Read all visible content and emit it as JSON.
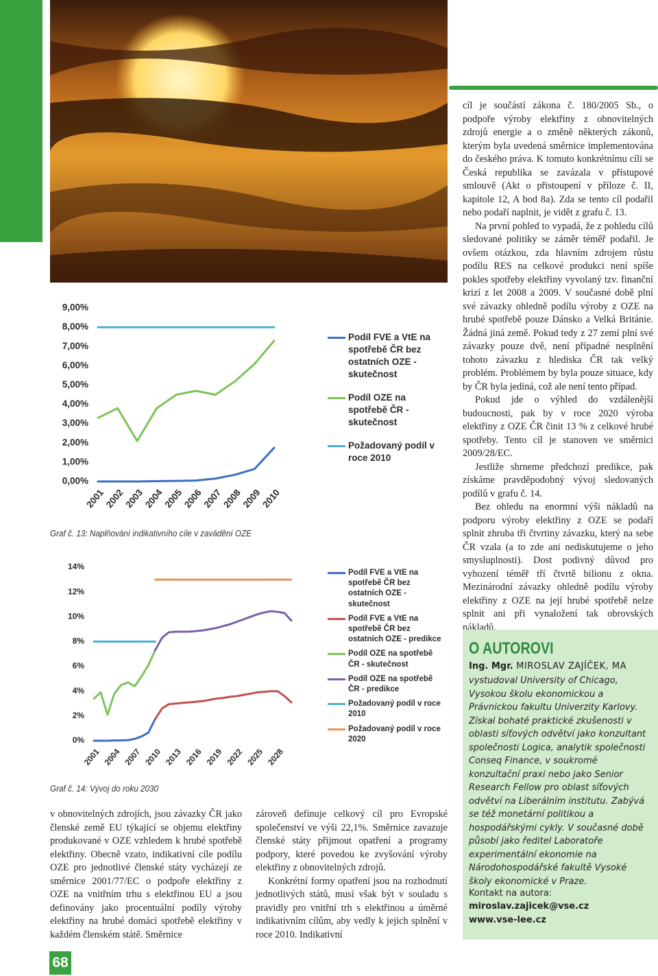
{
  "page_number": "68",
  "chart_data": [
    {
      "type": "line",
      "title": "Graf č. 13: Naplňování indikativního cíle v zavádění OZE",
      "categories": [
        "2001",
        "2002",
        "2003",
        "2004",
        "2005",
        "2006",
        "2007",
        "2008",
        "2009",
        "2010"
      ],
      "ylim": [
        0,
        9
      ],
      "yticks": [
        {
          "value": 0,
          "label": "0,00%"
        },
        {
          "value": 1,
          "label": "1,00%"
        },
        {
          "value": 2,
          "label": "2,00%"
        },
        {
          "value": 3,
          "label": "3,00%"
        },
        {
          "value": 4,
          "label": "4,00%"
        },
        {
          "value": 5,
          "label": "5,00%"
        },
        {
          "value": 6,
          "label": "6,00%"
        },
        {
          "value": 7,
          "label": "7,00%"
        },
        {
          "value": 8,
          "label": "8,00%"
        },
        {
          "value": 9,
          "label": "9,00%"
        }
      ],
      "grid": false,
      "legend": "right",
      "series": [
        {
          "name": "Podíl FVE a VtE na spotřebě ČR bez ostatních OZE - skutečnost",
          "color": "#3b6fc4",
          "values": [
            0,
            0,
            0,
            0.02,
            0.03,
            0.05,
            0.15,
            0.35,
            0.65,
            1.75
          ]
        },
        {
          "name": "Podíl OZE na spotřebě ČR - skutečnost",
          "color": "#7cc35a",
          "values": [
            3.3,
            3.8,
            2.1,
            3.8,
            4.5,
            4.7,
            4.5,
            5.2,
            6.1,
            7.3
          ]
        },
        {
          "name": "Požadovaný podíl v roce 2010",
          "color": "#4aaed6",
          "values": [
            8,
            8,
            8,
            8,
            8,
            8,
            8,
            8,
            8,
            8
          ]
        }
      ]
    },
    {
      "type": "line",
      "title": "Graf č. 14: Vývoj do roku 2030",
      "x": [
        2001,
        2002,
        2003,
        2004,
        2005,
        2006,
        2007,
        2008,
        2009,
        2010,
        2011,
        2012,
        2013,
        2014,
        2015,
        2016,
        2017,
        2018,
        2019,
        2020,
        2021,
        2022,
        2023,
        2024,
        2025,
        2026,
        2027,
        2028,
        2029,
        2030
      ],
      "xlim": [
        2001,
        2030
      ],
      "xticks": [
        2001,
        2004,
        2007,
        2010,
        2013,
        2016,
        2019,
        2022,
        2025,
        2028
      ],
      "ylim": [
        0,
        14
      ],
      "yticks": [
        {
          "value": 0,
          "label": "0%"
        },
        {
          "value": 2,
          "label": "2%"
        },
        {
          "value": 4,
          "label": "4%"
        },
        {
          "value": 6,
          "label": "6%"
        },
        {
          "value": 8,
          "label": "8%"
        },
        {
          "value": 10,
          "label": "10%"
        },
        {
          "value": 12,
          "label": "12%"
        },
        {
          "value": 14,
          "label": "14%"
        }
      ],
      "grid": false,
      "legend": "right",
      "series": [
        {
          "name": "Podíl FVE a VtE na spotřebě ČR bez ostatních OZE - skutečnost",
          "color": "#3b6fc4",
          "values": [
            0,
            0,
            0,
            0.02,
            0.03,
            0.05,
            0.15,
            0.35,
            0.65,
            1.75,
            null,
            null,
            null,
            null,
            null,
            null,
            null,
            null,
            null,
            null,
            null,
            null,
            null,
            null,
            null,
            null,
            null,
            null,
            null,
            null
          ]
        },
        {
          "name": "Podíl FVE a VtE na spotřebě ČR bez ostatních OZE - predikce",
          "color": "#c0504d",
          "values": [
            null,
            null,
            null,
            null,
            null,
            null,
            null,
            null,
            null,
            1.75,
            2.6,
            2.95,
            3.0,
            3.05,
            3.1,
            3.15,
            3.2,
            3.3,
            3.4,
            3.45,
            3.55,
            3.6,
            3.7,
            3.8,
            3.9,
            3.95,
            4.0,
            4.0,
            3.6,
            3.1
          ]
        },
        {
          "name": "Podíl OZE na spotřebě ČR - skutečnost",
          "color": "#7cc35a",
          "values": [
            3.4,
            3.9,
            2.1,
            3.8,
            4.5,
            4.7,
            4.4,
            5.2,
            6.1,
            7.3,
            null,
            null,
            null,
            null,
            null,
            null,
            null,
            null,
            null,
            null,
            null,
            null,
            null,
            null,
            null,
            null,
            null,
            null,
            null,
            null
          ]
        },
        {
          "name": "Podíl OZE na spotřebě ČR - predikce",
          "color": "#7a5fa8",
          "values": [
            null,
            null,
            null,
            null,
            null,
            null,
            null,
            null,
            null,
            7.3,
            8.3,
            8.75,
            8.8,
            8.8,
            8.8,
            8.85,
            8.9,
            9.0,
            9.1,
            9.25,
            9.4,
            9.6,
            9.8,
            10.0,
            10.2,
            10.35,
            10.45,
            10.4,
            10.3,
            9.7
          ]
        },
        {
          "name": "Požadovaný podíl v roce 2010",
          "color": "#4aaed6",
          "values": [
            8,
            8,
            8,
            8,
            8,
            8,
            8,
            8,
            8,
            8,
            null,
            null,
            null,
            null,
            null,
            null,
            null,
            null,
            null,
            null,
            null,
            null,
            null,
            null,
            null,
            null,
            null,
            null,
            null,
            null
          ]
        },
        {
          "name": "Požadovaný podíl v roce 2020",
          "color": "#e8955a",
          "values": [
            null,
            null,
            null,
            null,
            null,
            null,
            null,
            null,
            null,
            13,
            13,
            13,
            13,
            13,
            13,
            13,
            13,
            13,
            13,
            13,
            13,
            13,
            13,
            13,
            13,
            13,
            13,
            13,
            13,
            13
          ]
        }
      ]
    }
  ],
  "article": {
    "left_column": [
      "v obnovitelných zdrojích, jsou závazky ČR jako členské země EU týkající se objemu elektřiny produkované v OZE vzhledem k hrubé spotřebě elektřiny. Obecně vzato, indikativní cíle podílu OZE pro jednotlivé členské státy vycházejí ze směrnice 2001/77/EC o podpoře elektřiny z OZE na vnitřním trhu s elektřinou EU a jsou definovány jako procentuální podíly výroby elektřiny na hrubé domácí spotřebě elektřiny v každém členském státě. Směrnice"
    ],
    "middle_column": [
      "zároveň definuje celkový cíl pro Evropské společenství ve výši 22,1%. Směrnice zavazuje členské státy přijmout opatření a programy podpory, které povedou ke zvyšování výroby elektřiny z obnovitelných zdrojů.",
      "Konkrétní formy opatření jsou na rozhodnutí jednotlivých států, musí však být v souladu s pravidly pro vnitřní trh s elektřinou a úměrné indikativním cílům, aby vedly k jejich splnění v roce 2010. Indikativní"
    ],
    "right_column": [
      "cíl je součástí zákona č. 180/2005 Sb., o podpoře výroby elektřiny z obnovitelných zdrojů energie a o změně některých zákonů, kterým byla uvedená směrnice implementována do českého práva. K tomuto konkrétnímu cíli se Česká republika se zavázala v přístupové smlouvě (Akt o přistoupení v příloze č. II, kapitole 12, A bod 8a). Zda se tento cíl podařil nebo podaří naplnit, je vidět z grafu č. 13.",
      "Na první pohled to vypadá, že z pohledu cílů sledované politiky se záměr téměř podařil. Je ovšem otázkou, zda hlavním zdrojem růstu podílu RES na celkové produkci není spíše pokles spotřeby elektřiny vyvolaný tzv. finanční krizí z let 2008 a 2009. V současné době plní své závazky ohledně podílu výroby z OZE na hrubé spotřebě pouze Dánsko a Velká Británie. Žádná jiná země. Pokud tedy z 27 zemí plní své závazky pouze dvě, není případné nesplnění tohoto závazku z hlediska ČR tak velký problém. Problémem by byla pouze situace, kdy by ČR byla jediná, což ale není tento případ.",
      "Pokud jde o výhled do vzdálenější budoucnosti, pak by v roce 2020 výroba elektřiny z OZE ČR činit 13 % z celkové hrubé spotřeby. Tento cíl je stanoven ve směrnici 2009/28/EC.",
      "Jestliže shrneme předchozí predikce, pak získáme pravděpodobný vývoj sledovaných podílů v grafu č. 14.",
      "Bez ohledu na enormní výši nákladů na podporu výroby elektřiny z OZE se podaří splnit zhruba tři čtvrtiny závazku, který na sebe ČR vzala (a to zde ani nediskutujeme o jeho smysluplnosti). Dost podivný důvod pro vyhození téměř tří čtvrtě bilionu z okna. Mezinárodní závazky ohledně podílu výroby elektřiny z OZE na její hrubé spotřebě nelze splnit ani při vynaložení tak obrovských nákladů."
    ]
  },
  "author_box": {
    "heading": "O AUTOROVI",
    "title": "Ing. Mgr.",
    "name": "MIROSLAV ZAJÍČEK, MA",
    "bio": "vystudoval University of Chicago, Vysokou školu ekonomickou a Právnickou fakultu Univerzity Karlovy. Získal bohaté praktické zkušenosti v oblasti síťových odvětví jako konzultant společnosti Logica, analytik společnosti Conseq Finance, v soukromé konzultační praxi nebo jako Senior Research Fellow pro oblast síťových odvětví na Liberálním institutu. Zabývá se též monetární politikou a hospodářskými cykly. V současné době působí jako ředitel Laboratoře experimentální ekonomie na Národohospodářské fakultě Vysoké školy ekonomické v Praze.",
    "contact_label": "Kontakt na autora:",
    "email": "miroslav.zajicek@vse.cz",
    "web": "www.vse-lee.cz"
  }
}
